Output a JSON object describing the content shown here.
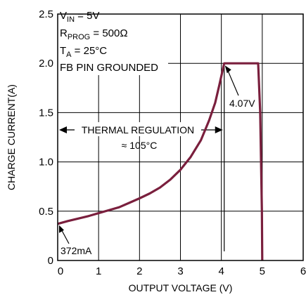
{
  "chart_data": {
    "type": "line",
    "title": "",
    "xlabel": "OUTPUT VOLTAGE (V)",
    "ylabel": "CHARGE CURRENT(A)",
    "xlim": [
      0,
      6
    ],
    "ylim": [
      0,
      2.5
    ],
    "x_ticks": [
      "0",
      "1",
      "2",
      "3",
      "4",
      "5",
      "6"
    ],
    "y_ticks": [
      "0",
      "0.5",
      "1.0",
      "1.5",
      "2.0",
      "2.5"
    ],
    "grid": true,
    "series_color": "#7a1f3d",
    "series": [
      {
        "x": [
          0,
          0.25,
          0.5,
          0.75,
          1.0,
          1.25,
          1.5,
          1.75,
          2.0,
          2.25,
          2.5,
          2.75,
          3.0,
          3.25,
          3.5,
          3.7,
          3.85,
          3.95,
          4.07,
          4.5,
          4.9,
          4.95,
          4.97,
          4.99,
          5.0
        ],
        "y": [
          0.372,
          0.4,
          0.425,
          0.45,
          0.48,
          0.51,
          0.54,
          0.585,
          0.63,
          0.68,
          0.74,
          0.82,
          0.92,
          1.05,
          1.22,
          1.42,
          1.6,
          1.78,
          2.0,
          2.0,
          2.0,
          1.5,
          1.0,
          0.5,
          0.0
        ]
      }
    ],
    "conditions": {
      "line1_main": "V",
      "line1_sub": "IN",
      "line1_rest": " = 5V",
      "line2_main": "R",
      "line2_sub": "PROG",
      "line2_rest": " = 500Ω",
      "line3_main": "T",
      "line3_sub": "A",
      "line3_rest": " = 25°C",
      "line4": "FB PIN GROUNDED"
    },
    "annotations": {
      "thermal_line1": "THERMAL REGULATION",
      "thermal_line2": "≈ 105°C",
      "voltage_label": "4.07V",
      "current_label": "372mA",
      "thermal_start_v": 0,
      "thermal_end_v": 4.07,
      "thermal_arrow_current": 1.325,
      "voltage_label_at": [
        4.07,
        2.0
      ],
      "current_label_at": [
        0,
        0.372
      ]
    }
  }
}
